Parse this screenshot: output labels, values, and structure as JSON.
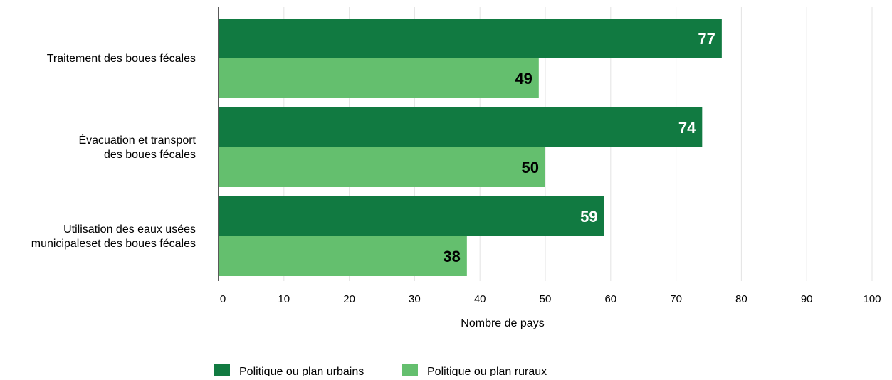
{
  "chart_data": {
    "type": "bar",
    "orientation": "horizontal",
    "categories": [
      [
        "Traitement des boues fécales"
      ],
      [
        "Évacuation et transport",
        "des boues fécales"
      ],
      [
        "Utilisation des eaux usées",
        "municipaleset des boues fécales"
      ]
    ],
    "series": [
      {
        "name": "Politique ou plan urbains",
        "values": [
          77,
          74,
          59
        ],
        "color": "#117A41",
        "label_color": "#ffffff"
      },
      {
        "name": "Politique ou plan ruraux",
        "values": [
          49,
          50,
          38
        ],
        "color": "#64BF6E",
        "label_color": "#000000"
      }
    ],
    "xlabel": "Nombre de pays",
    "xlim": [
      0,
      100
    ],
    "xticks": [
      0,
      10,
      20,
      30,
      40,
      50,
      60,
      70,
      80,
      90,
      100
    ],
    "grid": "vertical",
    "legend": "bottom"
  }
}
